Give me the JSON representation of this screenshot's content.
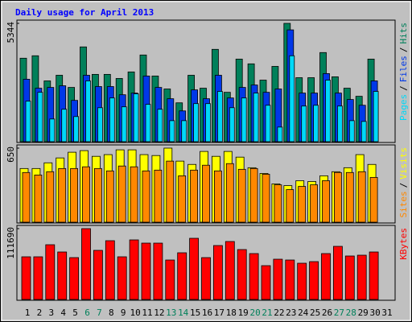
{
  "chart_data": {
    "type": "bar",
    "title": "Daily usage for April 2013",
    "categories": [
      "1",
      "2",
      "3",
      "4",
      "5",
      "6",
      "7",
      "8",
      "9",
      "10",
      "11",
      "12",
      "13",
      "14",
      "15",
      "16",
      "17",
      "18",
      "19",
      "20",
      "21",
      "22",
      "23",
      "24",
      "25",
      "26",
      "27",
      "28",
      "29",
      "30",
      "31"
    ],
    "category_colors": [
      "#000000",
      "#000000",
      "#000000",
      "#000000",
      "#000000",
      "#00805a",
      "#00805a",
      "#000000",
      "#000000",
      "#000000",
      "#000000",
      "#000000",
      "#00805a",
      "#00805a",
      "#000000",
      "#000000",
      "#000000",
      "#000000",
      "#000000",
      "#00805a",
      "#00805a",
      "#000000",
      "#000000",
      "#000000",
      "#000000",
      "#000000",
      "#00805a",
      "#00805a",
      "#000000",
      "#000000",
      "#000000"
    ],
    "legend_separator": "/",
    "panels": [
      {
        "ylim": [
          0,
          5344
        ],
        "yticks": [
          5344
        ],
        "series": [
          {
            "name": "Hits",
            "color": "#00805a",
            "values": [
              3770,
              3880,
              2745,
              3000,
              2450,
              4280,
              3040,
              3040,
              2855,
              3150,
              3915,
              2965,
              2380,
              1755,
              3000,
              2415,
              4170,
              2230,
              3730,
              3515,
              2780,
              3400,
              5344,
              2890,
              2890,
              4025,
              2930,
              2415,
              2050,
              3730,
              0
            ]
          },
          {
            "name": "Files",
            "color": "#0038e8",
            "values": [
              2820,
              2415,
              2450,
              2525,
              1865,
              3000,
              2490,
              2490,
              2120,
              2195,
              2965,
              2450,
              1940,
              1390,
              2340,
              1940,
              3000,
              1975,
              2450,
              2560,
              2230,
              2380,
              5050,
              2195,
              2195,
              3075,
              2195,
              1905,
              1645,
              2745,
              0
            ]
          },
          {
            "name": "Pages",
            "color": "#00d8f8",
            "values": [
              1830,
              2230,
              1025,
              1465,
              1135,
              2745,
              1535,
              1975,
              1575,
              2160,
              1685,
              1465,
              950,
              950,
              1720,
              1720,
              2270,
              1535,
              1975,
              2195,
              1645,
              660,
              3880,
              1610,
              1645,
              2780,
              1610,
              950,
              915,
              2270,
              0
            ]
          }
        ]
      },
      {
        "ylim": [
          0,
          650
        ],
        "yticks": [
          650
        ],
        "series": [
          {
            "name": "Visits",
            "color": "#ffff00",
            "values": [
              471,
              471,
              521,
              564,
              614,
              628,
              578,
              593,
              635,
              635,
              593,
              585,
              650,
              536,
              507,
              621,
              578,
              621,
              571,
              478,
              428,
              336,
              321,
              364,
              357,
              407,
              443,
              478,
              593,
              507,
              0
            ]
          },
          {
            "name": "Sites",
            "color": "#ff8800",
            "values": [
              436,
              414,
              443,
              471,
              471,
              486,
              471,
              450,
              493,
              486,
              450,
              457,
              536,
              407,
              457,
              500,
              450,
              514,
              464,
              471,
              421,
              328,
              286,
              314,
              328,
              364,
              436,
              436,
              443,
              393,
              0
            ]
          }
        ]
      },
      {
        "ylim": [
          0,
          111690
        ],
        "yticks": [
          111690
        ],
        "series": [
          {
            "name": "KBytes",
            "color": "#ff0000",
            "values": [
              67260,
              67260,
              86290,
              74870,
              65990,
              111690,
              77410,
              92640,
              67260,
              93910,
              88830,
              88830,
              62180,
              73600,
              96440,
              65990,
              85020,
              91370,
              78680,
              72330,
              53300,
              63450,
              62180,
              57110,
              59640,
              72330,
              83750,
              68530,
              69800,
              74870,
              0
            ]
          }
        ]
      }
    ]
  }
}
